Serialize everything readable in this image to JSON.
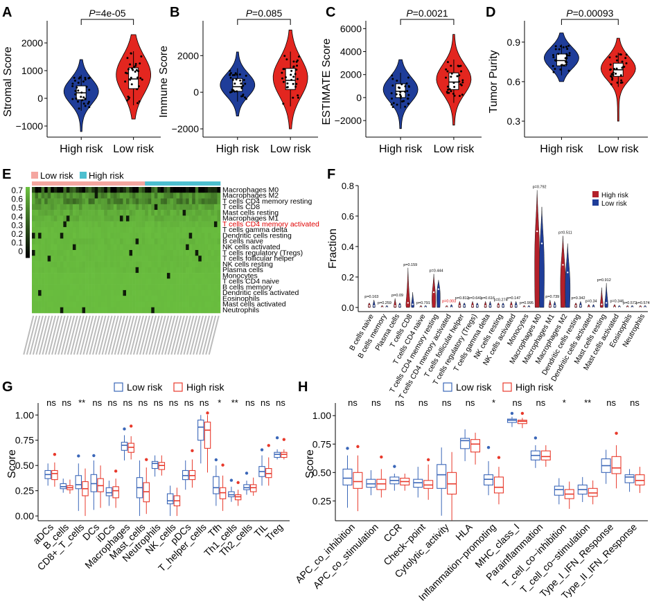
{
  "colors": {
    "high": "#1f3d99",
    "low": "#e3261f",
    "box_high": "#3a66b8",
    "box_low": "#e8392b",
    "heat_pink": "#f4a6a0",
    "heat_cyan": "#4dbfcf",
    "heat_green": "#6abf3f",
    "sig_red": "#e00000"
  },
  "chart_data": [
    {
      "panel": "A",
      "type": "violin",
      "ylabel": "Stromal Score",
      "categories": [
        "High risk",
        "Low risk"
      ],
      "ylim": [
        -1300,
        2600
      ],
      "yticks": [
        -1000,
        0,
        1000,
        2000
      ],
      "ytick_labels": [
        "−1000",
        "0",
        "1000",
        "2000"
      ],
      "pvalue": "4e-05",
      "p_prefix": "P",
      "p_suffix": "=4e-05",
      "series": [
        {
          "name": "High risk",
          "median": 200,
          "q1": -50,
          "q3": 450,
          "min": -1200,
          "max": 1400,
          "mode": 250
        },
        {
          "name": "Low risk",
          "median": 700,
          "q1": 350,
          "q3": 1100,
          "min": -750,
          "max": 2300,
          "mode": 850
        }
      ]
    },
    {
      "panel": "B",
      "type": "violin",
      "ylabel": "Immune Score",
      "categories": [
        "High risk",
        "Low risk"
      ],
      "ylim": [
        -2300,
        3600
      ],
      "yticks": [
        -2000,
        0,
        2000
      ],
      "ytick_labels": [
        "−2000",
        "0",
        "2000"
      ],
      "pvalue": "0.085",
      "p_prefix": "P",
      "p_suffix": "=0.085",
      "series": [
        {
          "name": "High risk",
          "median": 300,
          "q1": 50,
          "q3": 750,
          "min": -1300,
          "max": 2200,
          "mode": 400
        },
        {
          "name": "Low risk",
          "median": 650,
          "q1": 150,
          "q3": 1300,
          "min": -2000,
          "max": 3400,
          "mode": 800
        }
      ]
    },
    {
      "panel": "C",
      "type": "violin",
      "ylabel": "ESTIMATE Score",
      "categories": [
        "High risk",
        "Low risk"
      ],
      "ylim": [
        -3200,
        6200
      ],
      "yticks": [
        -2000,
        0,
        2000,
        4000,
        6000
      ],
      "ytick_labels": [
        "−2000",
        "0",
        "2000",
        "4000",
        "6000"
      ],
      "pvalue": "0.0021",
      "p_prefix": "P",
      "p_suffix": "=0.0021",
      "series": [
        {
          "name": "High risk",
          "median": 550,
          "q1": 0,
          "q3": 1200,
          "min": -2700,
          "max": 3300,
          "mode": 700
        },
        {
          "name": "Low risk",
          "median": 1350,
          "q1": 700,
          "q3": 2150,
          "min": -2400,
          "max": 5500,
          "mode": 1600
        }
      ]
    },
    {
      "panel": "D",
      "type": "violin",
      "ylabel": "Tumor Purity",
      "categories": [
        "High risk",
        "Low risk"
      ],
      "ylim": [
        0.2,
        1.02
      ],
      "yticks": [
        0.3,
        0.6,
        0.9
      ],
      "ytick_labels": [
        "0.3",
        "0.6",
        "0.9"
      ],
      "pvalue": "0.00093",
      "p_prefix": "P",
      "p_suffix": "=0.00093",
      "series": [
        {
          "name": "High risk",
          "median": 0.76,
          "q1": 0.72,
          "q3": 0.81,
          "min": 0.6,
          "max": 0.97,
          "mode": 0.78
        },
        {
          "name": "Low risk",
          "median": 0.69,
          "q1": 0.64,
          "q3": 0.74,
          "min": 0.3,
          "max": 0.93,
          "mode": 0.7
        }
      ]
    },
    {
      "panel": "E",
      "type": "heatmap",
      "legend": [
        "Low risk",
        "High risk"
      ],
      "scale_ticks": [
        "0.7",
        "0.6",
        "0.5",
        "0.4",
        "0.3",
        "0.2",
        "0.1",
        "0"
      ],
      "rows": [
        "Macrophages M0",
        "Macrophages M2",
        "T cells CD4 memory resting",
        "T cells CD8",
        "Mast cells resting",
        "Macrophages M1",
        "T cells CD4 memory activated",
        "T cells gamma delta",
        "Dendritic cells resting",
        "B cells naive",
        "NK cells activated",
        "T cells regulatory (Tregs)",
        "T cells follicular helper",
        "NK cells resting",
        "Plasma cells",
        "Monocytes",
        "T cells CD4 naive",
        "B cells memory",
        "Dendritic cells activated",
        "Eosinophils",
        "Mast cells activated",
        "Neutrophils"
      ],
      "highlight_row": "T cells CD4 memory activated",
      "n_samples": 60,
      "n_low": 36,
      "row_levels": [
        0.55,
        0.18,
        0.2,
        0.1,
        0.07,
        0.06,
        0.03,
        0.02,
        0.02,
        0.03,
        0.02,
        0.02,
        0.02,
        0.02,
        0.02,
        0.01,
        0.01,
        0.01,
        0.01,
        0.01,
        0.01,
        0.01
      ]
    },
    {
      "panel": "F",
      "type": "violin",
      "ylabel": "Fraction",
      "ylim": [
        0,
        0.8
      ],
      "yticks": [
        0.0,
        0.2,
        0.4,
        0.6,
        0.8
      ],
      "ytick_labels": [
        "0.0",
        "0.2",
        "0.4",
        "0.6",
        "0.8"
      ],
      "legend": [
        "High risk",
        "Low risk"
      ],
      "categories": [
        "B cells naive",
        "B cells memory",
        "Plasma cells",
        "T cells CD8",
        "T cells CD4 naive",
        "T cells CD4 memory resting",
        "T cells CD4 memory activated",
        "T cells follicular helper",
        "T cells regulatory (Tregs)",
        "T cells gamma delta",
        "NK cells resting",
        "NK cells activated",
        "Monocytes",
        "Macrophages M0",
        "Macrophages M1",
        "Macrophages M2",
        "Dendritic cells resting",
        "Dendritic cells activated",
        "Mast cells resting",
        "Mast cells activated",
        "Eosinophils",
        "Neutrophils"
      ],
      "pvalues": [
        "p=0.163",
        "p=0.259",
        "p=0.09",
        "p=0.159",
        "p=0.791",
        "p=0.444",
        "p=0.003",
        "p=0.812",
        "p=0.641",
        "p=0.616",
        "p=0.274",
        "p=0.147",
        "p=0.995",
        "p=0.792",
        "p=0.739",
        "p=0.511",
        "p=0.342",
        "p=0.34",
        "p=0.912",
        "p=0.346",
        "p=0.572",
        "p=0.574"
      ],
      "significant": [
        "p=0.003"
      ],
      "high_max": [
        0.03,
        0.01,
        0.06,
        0.26,
        0.01,
        0.22,
        0.01,
        0.04,
        0.04,
        0.04,
        0.03,
        0.04,
        0.01,
        0.77,
        0.05,
        0.47,
        0.03,
        0.02,
        0.13,
        0.02,
        0.01,
        0.01
      ],
      "low_max": [
        0.05,
        0.01,
        0.03,
        0.1,
        0.01,
        0.18,
        0.02,
        0.03,
        0.03,
        0.04,
        0.03,
        0.04,
        0.01,
        0.66,
        0.04,
        0.42,
        0.04,
        0.02,
        0.16,
        0.01,
        0.01,
        0.01
      ],
      "high_mid": [
        0.01,
        0.0,
        0.01,
        0.03,
        0.0,
        0.1,
        0.0,
        0.01,
        0.01,
        0.01,
        0.01,
        0.01,
        0.0,
        0.5,
        0.01,
        0.28,
        0.01,
        0.0,
        0.02,
        0.0,
        0.0,
        0.0
      ],
      "low_mid": [
        0.01,
        0.0,
        0.01,
        0.02,
        0.0,
        0.12,
        0.0,
        0.01,
        0.01,
        0.01,
        0.01,
        0.01,
        0.0,
        0.42,
        0.01,
        0.23,
        0.01,
        0.0,
        0.03,
        0.0,
        0.0,
        0.0
      ]
    },
    {
      "panel": "G",
      "type": "box",
      "ylabel": "Score",
      "ylim": [
        -0.02,
        1.05
      ],
      "yticks": [
        0.0,
        0.25,
        0.5,
        0.75,
        1.0
      ],
      "ytick_labels": [
        "0.00",
        "0.25",
        "0.50",
        "0.75",
        "1.00"
      ],
      "legend": [
        "Low risk",
        "High risk"
      ],
      "categories": [
        "aDCs",
        "B_cells",
        "CD8+_T_cells",
        "DCs",
        "iDCs",
        "Macrophages",
        "Mast_cells",
        "Neutrophils",
        "NK_cells",
        "pDCs",
        "T_helper_cells",
        "Tfh",
        "Th1_cells",
        "Th2_cells",
        "TIL",
        "Treg"
      ],
      "signif": [
        "ns",
        "ns",
        "**",
        "ns",
        "ns",
        "ns",
        "ns",
        "ns",
        "ns",
        "ns",
        "ns",
        "*",
        "**",
        "ns",
        "ns",
        "ns"
      ],
      "series": [
        {
          "name": "Low risk",
          "q1": [
            0.37,
            0.27,
            0.27,
            0.24,
            0.2,
            0.65,
            0.18,
            0.47,
            0.12,
            0.36,
            0.75,
            0.22,
            0.19,
            0.26,
            0.39,
            0.58
          ],
          "median": [
            0.41,
            0.29,
            0.31,
            0.32,
            0.23,
            0.7,
            0.28,
            0.52,
            0.15,
            0.4,
            0.88,
            0.28,
            0.21,
            0.28,
            0.44,
            0.61
          ],
          "q3": [
            0.45,
            0.32,
            0.4,
            0.41,
            0.28,
            0.73,
            0.38,
            0.54,
            0.22,
            0.45,
            0.95,
            0.39,
            0.24,
            0.31,
            0.49,
            0.63
          ],
          "lo": [
            0.3,
            0.23,
            0.05,
            0.06,
            0.1,
            0.55,
            0.0,
            0.39,
            0.0,
            0.26,
            0.52,
            0.1,
            0.14,
            0.21,
            0.3,
            0.56
          ],
          "hi": [
            0.52,
            0.37,
            0.52,
            0.55,
            0.35,
            0.8,
            0.55,
            0.6,
            0.3,
            0.55,
            1.0,
            0.5,
            0.29,
            0.35,
            0.6,
            0.66
          ]
        },
        {
          "name": "High risk",
          "q1": [
            0.36,
            0.26,
            0.2,
            0.24,
            0.18,
            0.63,
            0.14,
            0.46,
            0.1,
            0.36,
            0.67,
            0.17,
            0.16,
            0.24,
            0.38,
            0.58
          ],
          "median": [
            0.42,
            0.28,
            0.27,
            0.3,
            0.25,
            0.68,
            0.24,
            0.5,
            0.15,
            0.4,
            0.85,
            0.23,
            0.19,
            0.28,
            0.42,
            0.61
          ],
          "q3": [
            0.45,
            0.3,
            0.34,
            0.37,
            0.29,
            0.72,
            0.33,
            0.53,
            0.2,
            0.45,
            0.93,
            0.28,
            0.21,
            0.31,
            0.47,
            0.63
          ],
          "lo": [
            0.29,
            0.22,
            0.0,
            0.08,
            0.08,
            0.56,
            0.02,
            0.4,
            0.0,
            0.28,
            0.43,
            0.05,
            0.1,
            0.2,
            0.3,
            0.56
          ],
          "hi": [
            0.53,
            0.36,
            0.47,
            0.5,
            0.37,
            0.79,
            0.48,
            0.6,
            0.28,
            0.56,
            1.0,
            0.4,
            0.26,
            0.38,
            0.58,
            0.66
          ]
        }
      ]
    },
    {
      "panel": "H",
      "type": "box",
      "ylabel": "Score",
      "ylim": [
        0.1,
        1.05
      ],
      "yticks": [
        0.25,
        0.5,
        0.75,
        1.0
      ],
      "ytick_labels": [
        "0.25",
        "0.50",
        "0.75",
        "1.00"
      ],
      "legend": [
        "Low risk",
        "High risk"
      ],
      "categories": [
        "APC_co_inhibition",
        "APC_co_stimulation",
        "CCR",
        "Check−point",
        "Cytolytic_activity",
        "HLA",
        "Inflammation−promoting",
        "MHC_class_I",
        "Parainflammation",
        "T_cell_co−inhibition",
        "T_cell_co−stimulation",
        "Type_I_IFN_Response",
        "Type_II_IFN_Response"
      ],
      "signif": [
        "ns",
        "ns",
        "ns",
        "ns",
        "ns",
        "ns",
        "*",
        "ns",
        "ns",
        "*",
        "**",
        "ns",
        "ns"
      ],
      "series": [
        {
          "name": "Low risk",
          "q1": [
            0.39,
            0.37,
            0.4,
            0.37,
            0.36,
            0.71,
            0.39,
            0.94,
            0.61,
            0.3,
            0.31,
            0.5,
            0.41
          ],
          "median": [
            0.45,
            0.4,
            0.43,
            0.41,
            0.48,
            0.78,
            0.44,
            0.96,
            0.65,
            0.35,
            0.35,
            0.56,
            0.46
          ],
          "q3": [
            0.53,
            0.44,
            0.46,
            0.44,
            0.57,
            0.8,
            0.48,
            0.97,
            0.69,
            0.38,
            0.39,
            0.62,
            0.48
          ],
          "lo": [
            0.19,
            0.3,
            0.34,
            0.28,
            0.12,
            0.6,
            0.3,
            0.9,
            0.54,
            0.22,
            0.24,
            0.4,
            0.33
          ],
          "hi": [
            0.65,
            0.52,
            0.49,
            0.55,
            0.72,
            0.88,
            0.6,
            0.99,
            0.74,
            0.45,
            0.46,
            0.7,
            0.53
          ]
        },
        {
          "name": "High risk",
          "q1": [
            0.36,
            0.35,
            0.39,
            0.36,
            0.31,
            0.68,
            0.32,
            0.93,
            0.61,
            0.27,
            0.29,
            0.49,
            0.39
          ],
          "median": [
            0.42,
            0.4,
            0.42,
            0.39,
            0.4,
            0.75,
            0.37,
            0.95,
            0.64,
            0.31,
            0.32,
            0.54,
            0.43
          ],
          "q3": [
            0.5,
            0.44,
            0.45,
            0.43,
            0.5,
            0.79,
            0.46,
            0.96,
            0.69,
            0.35,
            0.36,
            0.64,
            0.48
          ],
          "lo": [
            0.16,
            0.28,
            0.34,
            0.26,
            0.08,
            0.57,
            0.22,
            0.89,
            0.55,
            0.18,
            0.22,
            0.36,
            0.32
          ],
          "hi": [
            0.65,
            0.53,
            0.49,
            0.57,
            0.68,
            0.85,
            0.55,
            0.98,
            0.74,
            0.42,
            0.43,
            0.74,
            0.55
          ]
        }
      ]
    }
  ]
}
